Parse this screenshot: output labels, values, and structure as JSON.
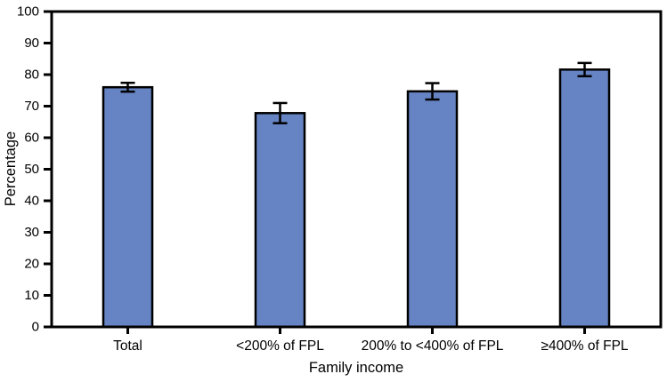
{
  "chart_data": {
    "type": "bar",
    "title": "",
    "categories": [
      "Total",
      "<200% of FPL",
      "200% to <400% of FPL",
      "≥400% of FPL"
    ],
    "values": [
      76.0,
      67.8,
      74.7,
      81.6
    ],
    "error_bars": [
      1.4,
      3.2,
      2.6,
      2.1
    ],
    "xlabel": "Family income",
    "ylabel": "Percentage",
    "ylim": [
      0,
      100
    ],
    "yticks": [
      0,
      10,
      20,
      30,
      40,
      50,
      60,
      70,
      80,
      90,
      100
    ],
    "grid": false,
    "legend": false,
    "bar_color": "#6684C4",
    "bar_border_color": "#000000",
    "axis_color": "#000000",
    "text_color": "#000000",
    "background_color": "#FFFFFF"
  }
}
